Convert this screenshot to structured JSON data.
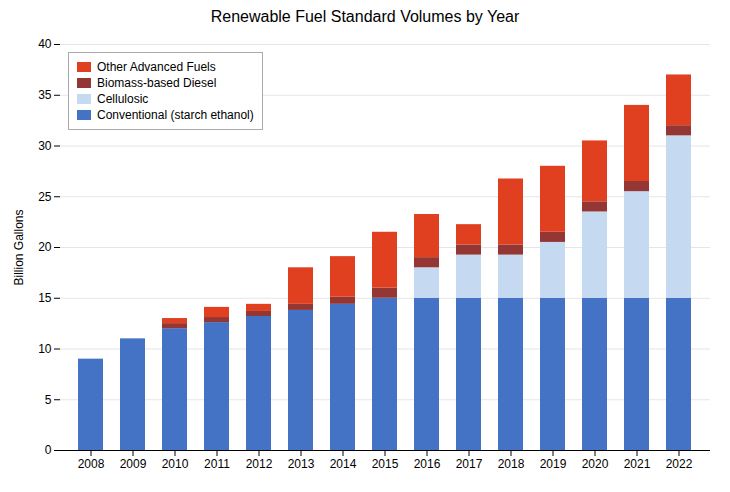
{
  "chart_data": {
    "type": "bar",
    "stacked": true,
    "title": "Renewable Fuel Standard Volumes by Year",
    "ylabel": "Billion Gallons",
    "categories": [
      "2008",
      "2009",
      "2010",
      "2011",
      "2012",
      "2013",
      "2014",
      "2015",
      "2016",
      "2017",
      "2018",
      "2019",
      "2020",
      "2021",
      "2022"
    ],
    "series": [
      {
        "name": "Conventional (starch ethanol)",
        "color": "#4472C4",
        "values": [
          9.0,
          11.0,
          12.0,
          12.6,
          13.2,
          13.8,
          14.4,
          15.0,
          15.0,
          15.0,
          15.0,
          15.0,
          15.0,
          15.0,
          15.0
        ]
      },
      {
        "name": "Cellulosic",
        "color": "#C5D9F1",
        "values": [
          0.0,
          0.0,
          0.0,
          0.0,
          0.0,
          0.0,
          0.0,
          0.0,
          3.0,
          4.25,
          4.25,
          5.5,
          8.5,
          10.5,
          16.0
        ]
      },
      {
        "name": "Biomass-based Diesel",
        "color": "#943634",
        "values": [
          0.0,
          0.0,
          0.5,
          0.5,
          0.5,
          0.6,
          0.7,
          1.0,
          1.0,
          1.0,
          1.0,
          1.0,
          1.0,
          1.0,
          1.0
        ]
      },
      {
        "name": "Other Advanced Fuels",
        "color": "#E04020",
        "values": [
          0.0,
          0.0,
          0.5,
          1.0,
          0.7,
          3.6,
          4.0,
          5.5,
          4.25,
          2.0,
          6.5,
          6.5,
          6.0,
          7.5,
          5.0
        ]
      }
    ],
    "ylim": [
      0,
      40
    ],
    "yticks": [
      0,
      5,
      10,
      15,
      20,
      25,
      30,
      35,
      40
    ],
    "grid": true,
    "legend": "upper left"
  }
}
